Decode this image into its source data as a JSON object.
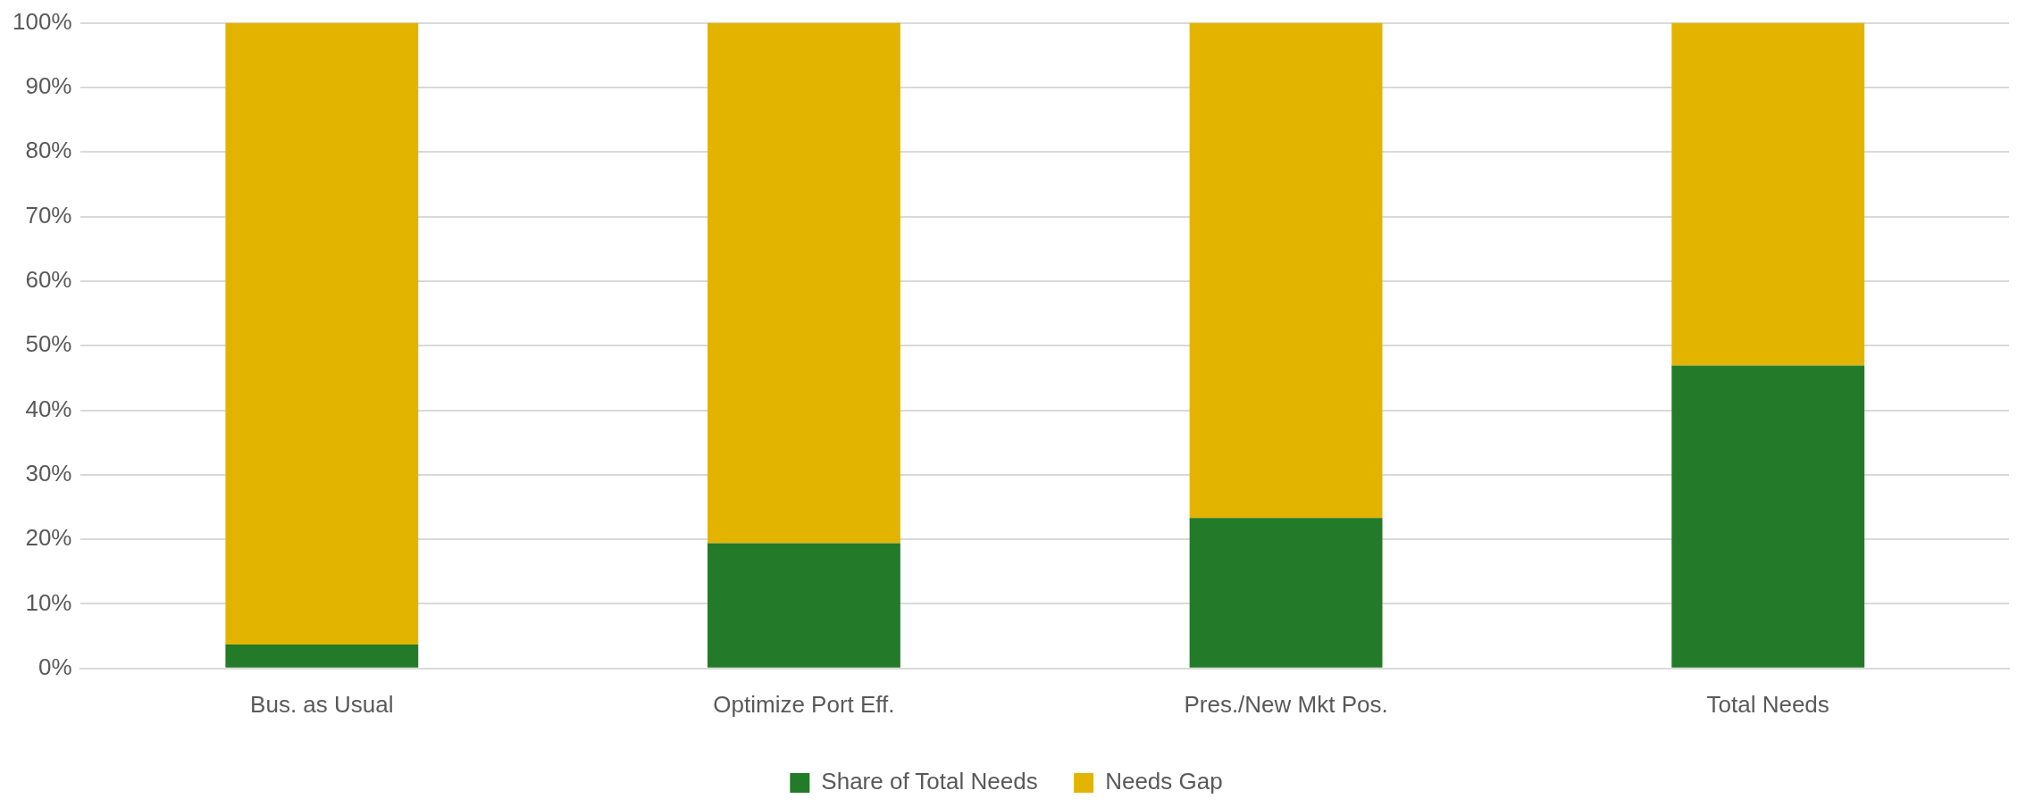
{
  "chart_data": {
    "type": "bar",
    "stacked": true,
    "categories": [
      "Bus. as Usual",
      "Optimize Port Eff.",
      "Pres./New Mkt Pos.",
      "Total Needs"
    ],
    "series": [
      {
        "name": "Share of Total Needs",
        "color": "#237a28",
        "values": [
          3.7,
          19.4,
          23.3,
          46.9
        ]
      },
      {
        "name": "Needs Gap",
        "color": "#e2b400",
        "values": [
          96.3,
          80.6,
          76.7,
          53.1
        ]
      }
    ],
    "ylim": [
      0,
      100
    ],
    "yticks": [
      {
        "value": 0,
        "label": "0%"
      },
      {
        "value": 10,
        "label": "10%"
      },
      {
        "value": 20,
        "label": "20%"
      },
      {
        "value": 30,
        "label": "30%"
      },
      {
        "value": 40,
        "label": "40%"
      },
      {
        "value": 50,
        "label": "50%"
      },
      {
        "value": 60,
        "label": "60%"
      },
      {
        "value": 70,
        "label": "70%"
      },
      {
        "value": 80,
        "label": "80%"
      },
      {
        "value": 90,
        "label": "90%"
      },
      {
        "value": 100,
        "label": "100%"
      }
    ],
    "grid": "y",
    "legend": "bottom"
  }
}
